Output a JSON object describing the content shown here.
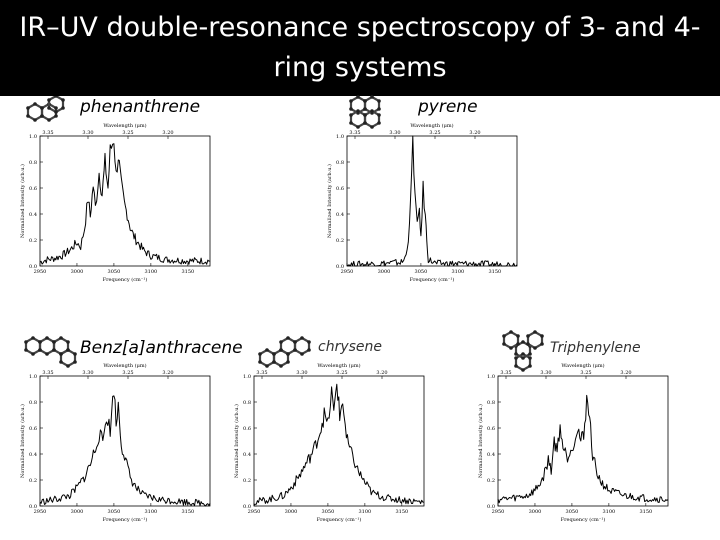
{
  "title": "IR–UV double-resonance spectroscopy of 3- and 4-ring systems",
  "compounds": [
    {
      "name": "phenanthrene",
      "icon": "phenanthrene-molecule-icon"
    },
    {
      "name": "pyrene",
      "icon": "pyrene-molecule-icon"
    },
    {
      "name": "Benz[a]anthracene",
      "icon": "benz-a-anthracene-molecule-icon"
    },
    {
      "name": "chrysene",
      "icon": "chrysene-molecule-icon"
    },
    {
      "name": "Triphenylene",
      "icon": "triphenylene-molecule-icon"
    }
  ],
  "colors": {
    "title_bg": "#000000",
    "title_text": "#ffffff",
    "trace": "#000000"
  },
  "chart_data": [
    {
      "type": "line",
      "name": "phenanthrene",
      "xlabel": "Frequency (cm⁻¹)",
      "ylabel": "Normalized Intensity (arb.u.)",
      "top_xlabel": "Wavelength (μm)",
      "xlim": [
        2950,
        3180
      ],
      "ylim": [
        0,
        1.0
      ],
      "x_ticks": [
        "2950",
        "3000",
        "3050",
        "3100",
        "3150"
      ],
      "y_ticks": [
        "0.0",
        "0.2",
        "0.4",
        "0.6",
        "0.8",
        "1.0"
      ],
      "top_ticks": [
        "3.35",
        "3.30",
        "3.25",
        "3.20"
      ],
      "points": [
        [
          2950,
          0.03
        ],
        [
          2960,
          0.05
        ],
        [
          2970,
          0.06
        ],
        [
          2980,
          0.08
        ],
        [
          2990,
          0.12
        ],
        [
          3000,
          0.18
        ],
        [
          3005,
          0.15
        ],
        [
          3010,
          0.28
        ],
        [
          3015,
          0.52
        ],
        [
          3018,
          0.38
        ],
        [
          3022,
          0.62
        ],
        [
          3025,
          0.45
        ],
        [
          3030,
          0.72
        ],
        [
          3034,
          0.55
        ],
        [
          3038,
          0.8
        ],
        [
          3042,
          0.6
        ],
        [
          3045,
          0.88
        ],
        [
          3050,
          0.98
        ],
        [
          3053,
          0.7
        ],
        [
          3056,
          0.85
        ],
        [
          3060,
          0.62
        ],
        [
          3064,
          0.48
        ],
        [
          3068,
          0.4
        ],
        [
          3072,
          0.3
        ],
        [
          3076,
          0.24
        ],
        [
          3080,
          0.2
        ],
        [
          3090,
          0.12
        ],
        [
          3100,
          0.08
        ],
        [
          3120,
          0.05
        ],
        [
          3150,
          0.04
        ],
        [
          3180,
          0.04
        ]
      ]
    },
    {
      "type": "line",
      "name": "pyrene",
      "xlabel": "Frequency (cm⁻¹)",
      "ylabel": "Normalized Intensity (arb.u.)",
      "top_xlabel": "Wavelength (μm)",
      "xlim": [
        2950,
        3180
      ],
      "ylim": [
        0,
        1.0
      ],
      "x_ticks": [
        "2950",
        "3000",
        "3050",
        "3100",
        "3150"
      ],
      "y_ticks": [
        "0.0",
        "0.2",
        "0.4",
        "0.6",
        "0.8",
        "1.0"
      ],
      "top_ticks": [
        "3.35",
        "3.30",
        "3.25",
        "3.20"
      ],
      "points": [
        [
          2950,
          0.01
        ],
        [
          3000,
          0.02
        ],
        [
          3025,
          0.03
        ],
        [
          3030,
          0.08
        ],
        [
          3033,
          0.22
        ],
        [
          3036,
          0.48
        ],
        [
          3039,
          0.98
        ],
        [
          3042,
          0.55
        ],
        [
          3045,
          0.3
        ],
        [
          3048,
          0.45
        ],
        [
          3050,
          0.2
        ],
        [
          3053,
          0.6
        ],
        [
          3056,
          0.38
        ],
        [
          3058,
          0.2
        ],
        [
          3060,
          0.05
        ],
        [
          3070,
          0.02
        ],
        [
          3180,
          0.01
        ]
      ]
    },
    {
      "type": "line",
      "name": "Benz[a]anthracene",
      "xlabel": "Frequency (cm⁻¹)",
      "ylabel": "Normalized Intensity (arb.u.)",
      "top_xlabel": "Wavelength (μm)",
      "xlim": [
        2950,
        3180
      ],
      "ylim": [
        0,
        1.0
      ],
      "x_ticks": [
        "2950",
        "3000",
        "3050",
        "3100",
        "3150"
      ],
      "y_ticks": [
        "0.0",
        "0.2",
        "0.4",
        "0.6",
        "0.8",
        "1.0"
      ],
      "top_ticks": [
        "3.35",
        "3.30",
        "3.25",
        "3.20"
      ],
      "points": [
        [
          2950,
          0.03
        ],
        [
          2970,
          0.05
        ],
        [
          2990,
          0.08
        ],
        [
          3000,
          0.14
        ],
        [
          3010,
          0.22
        ],
        [
          3018,
          0.32
        ],
        [
          3025,
          0.45
        ],
        [
          3030,
          0.55
        ],
        [
          3035,
          0.5
        ],
        [
          3040,
          0.7
        ],
        [
          3045,
          0.58
        ],
        [
          3050,
          0.92
        ],
        [
          3053,
          0.62
        ],
        [
          3056,
          0.78
        ],
        [
          3060,
          0.48
        ],
        [
          3066,
          0.35
        ],
        [
          3072,
          0.22
        ],
        [
          3080,
          0.14
        ],
        [
          3090,
          0.08
        ],
        [
          3110,
          0.05
        ],
        [
          3150,
          0.03
        ],
        [
          3180,
          0.02
        ]
      ]
    },
    {
      "type": "line",
      "name": "chrysene",
      "xlabel": "Frequency (cm⁻¹)",
      "ylabel": "Normalized Intensity (arb.u.)",
      "top_xlabel": "Wavelength (μm)",
      "xlim": [
        2950,
        3180
      ],
      "ylim": [
        0,
        1.0
      ],
      "x_ticks": [
        "2950",
        "3000",
        "3050",
        "3100",
        "3150"
      ],
      "y_ticks": [
        "0.0",
        "0.2",
        "0.4",
        "0.6",
        "0.8",
        "1.0"
      ],
      "top_ticks": [
        "3.35",
        "3.30",
        "3.25",
        "3.20"
      ],
      "points": [
        [
          2950,
          0.03
        ],
        [
          2970,
          0.05
        ],
        [
          2990,
          0.08
        ],
        [
          3000,
          0.14
        ],
        [
          3010,
          0.22
        ],
        [
          3020,
          0.32
        ],
        [
          3030,
          0.42
        ],
        [
          3038,
          0.55
        ],
        [
          3045,
          0.7
        ],
        [
          3050,
          0.62
        ],
        [
          3055,
          0.88
        ],
        [
          3058,
          0.7
        ],
        [
          3062,
          0.97
        ],
        [
          3066,
          0.68
        ],
        [
          3070,
          0.82
        ],
        [
          3075,
          0.52
        ],
        [
          3082,
          0.4
        ],
        [
          3090,
          0.28
        ],
        [
          3100,
          0.18
        ],
        [
          3110,
          0.1
        ],
        [
          3130,
          0.06
        ],
        [
          3160,
          0.04
        ],
        [
          3180,
          0.03
        ]
      ]
    },
    {
      "type": "line",
      "name": "Triphenylene",
      "xlabel": "Frequency (cm⁻¹)",
      "ylabel": "Normalized Intensity (arb.u.)",
      "top_xlabel": "Wavelength (μm)",
      "xlim": [
        2950,
        3180
      ],
      "ylim": [
        0,
        1.0
      ],
      "x_ticks": [
        "2950",
        "3000",
        "3050",
        "3100",
        "3150"
      ],
      "y_ticks": [
        "0.0",
        "0.2",
        "0.4",
        "0.6",
        "0.8",
        "1.0"
      ],
      "top_ticks": [
        "3.35",
        "3.30",
        "3.25",
        "3.20"
      ],
      "points": [
        [
          2950,
          0.05
        ],
        [
          2970,
          0.06
        ],
        [
          2990,
          0.08
        ],
        [
          3000,
          0.12
        ],
        [
          3010,
          0.2
        ],
        [
          3018,
          0.35
        ],
        [
          3022,
          0.28
        ],
        [
          3026,
          0.5
        ],
        [
          3030,
          0.42
        ],
        [
          3034,
          0.62
        ],
        [
          3038,
          0.45
        ],
        [
          3044,
          0.38
        ],
        [
          3050,
          0.45
        ],
        [
          3058,
          0.6
        ],
        [
          3062,
          0.5
        ],
        [
          3066,
          0.55
        ],
        [
          3070,
          0.82
        ],
        [
          3074,
          0.68
        ],
        [
          3078,
          0.4
        ],
        [
          3084,
          0.25
        ],
        [
          3090,
          0.18
        ],
        [
          3100,
          0.12
        ],
        [
          3120,
          0.08
        ],
        [
          3150,
          0.06
        ],
        [
          3180,
          0.05
        ]
      ]
    }
  ]
}
